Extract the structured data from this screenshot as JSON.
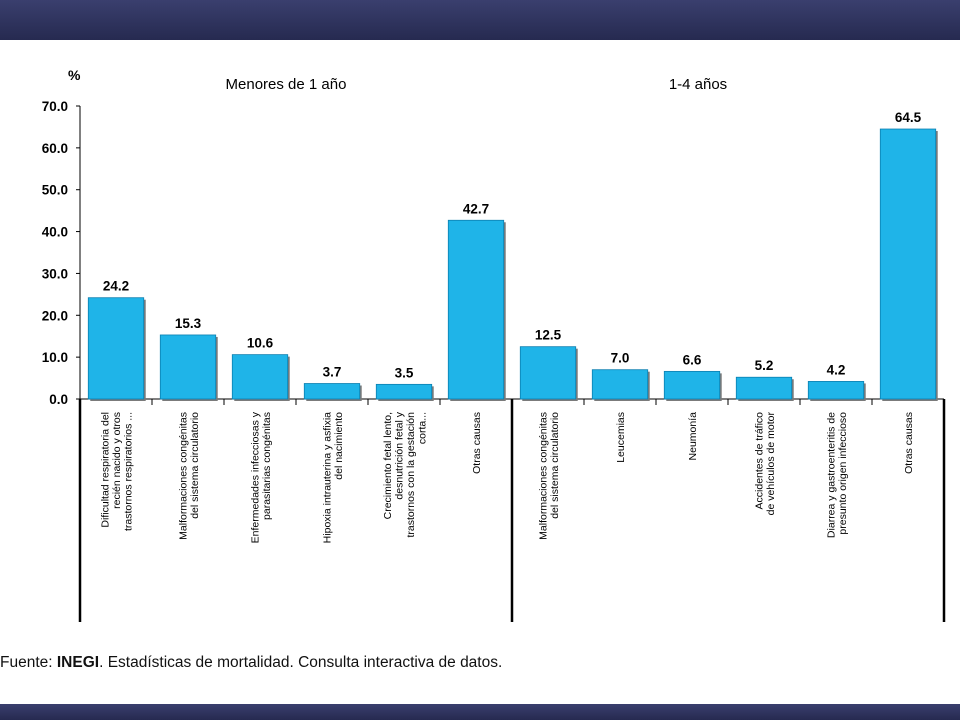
{
  "chart_data": {
    "type": "bar",
    "unit_label": "%",
    "ylim": [
      0,
      70
    ],
    "yticks": [
      "0.0",
      "10.0",
      "20.0",
      "30.0",
      "40.0",
      "50.0",
      "60.0",
      "70.0"
    ],
    "ytick_values": [
      0,
      10,
      20,
      30,
      40,
      50,
      60,
      70
    ],
    "bar_color": "#1fb4e8",
    "groups": [
      {
        "label": "Menores de 1 año",
        "categories": [
          [
            "Dificultad respiratoria del",
            "recién nacido y otros",
            "trastornos respiratorios ..."
          ],
          [
            "Malformaciones congénitas",
            "del sistema circulatorio"
          ],
          [
            "Enfermedades infecciosas y",
            "parasitarias congénitas"
          ],
          [
            "Hipoxia intrauterina y asfixia",
            "del nacimiento"
          ],
          [
            "Crecimiento fetal lento,",
            "desnutrición fetal y",
            "trastornos con la gestación",
            "corta..."
          ],
          [
            "Otras causas"
          ]
        ],
        "values": [
          24.2,
          15.3,
          10.6,
          3.7,
          3.5,
          42.7
        ],
        "value_labels": [
          "24.2",
          "15.3",
          "10.6",
          "3.7",
          "3.5",
          "42.7"
        ]
      },
      {
        "label": "1-4 años",
        "categories": [
          [
            "Malformaciones congénitas",
            "del sistema circulatorio"
          ],
          [
            "Leucemias"
          ],
          [
            "Neumonía"
          ],
          [
            "Accidentes de tráfico",
            "de vehículos de motor"
          ],
          [
            "Diarrea y gastroenteritis de",
            "presunto origen infeccioso"
          ],
          [
            "Otras causas"
          ]
        ],
        "values": [
          12.5,
          7.0,
          6.6,
          5.2,
          4.2,
          64.5
        ],
        "value_labels": [
          "12.5",
          "7.0",
          "6.6",
          "5.2",
          "4.2",
          "64.5"
        ]
      }
    ]
  },
  "source": {
    "prefix": "Fuente: ",
    "org": "INEGI",
    "text": ". Estadísticas de mortalidad. Consulta interactiva de datos."
  }
}
